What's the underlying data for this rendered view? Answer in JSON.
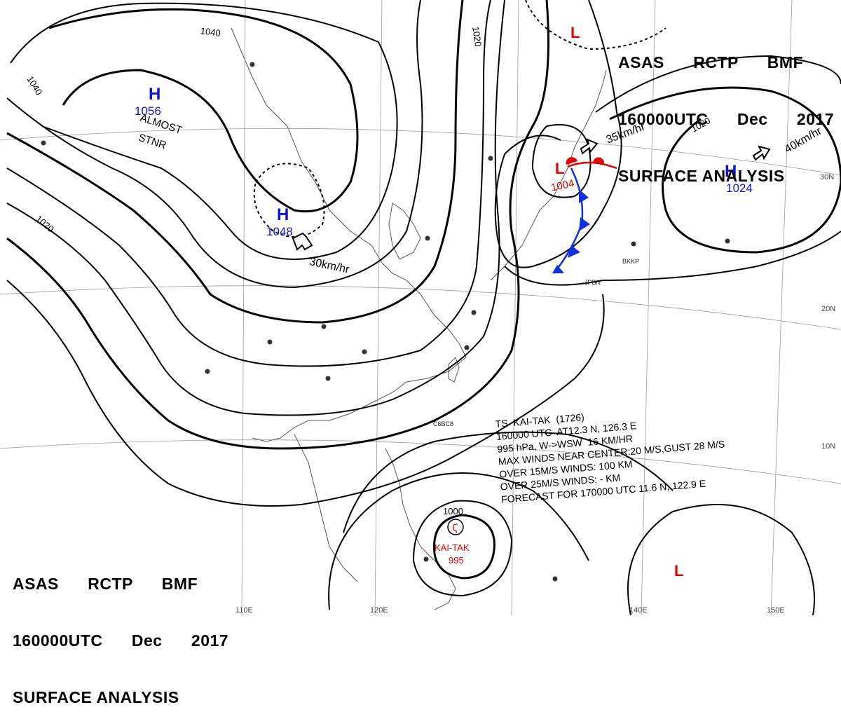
{
  "header": {
    "line1": [
      "ASAS",
      "RCTP",
      "BMF"
    ],
    "line2": [
      "160000UTC",
      "Dec",
      "2017"
    ],
    "line3": "SURFACE ANALYSIS"
  },
  "colors": {
    "isobar": "#000000",
    "high_label": "#1010d0",
    "low_label": "#e00000",
    "cold_front": "#1030e0",
    "warm_front": "#e00000"
  },
  "pressure_centers": [
    {
      "type": "H",
      "value": "1056"
    },
    {
      "type": "H",
      "value": "1048"
    },
    {
      "type": "H",
      "value": "1024"
    },
    {
      "type": "L",
      "value": "1004"
    },
    {
      "type": "L",
      "value": ""
    },
    {
      "type": "L",
      "value": ""
    }
  ],
  "isobar_labels": [
    "1040",
    "1040",
    "1020",
    "1020",
    "1020",
    "1000"
  ],
  "motion_labels": [
    "30km/hr",
    "35km/hr",
    "40km/hr"
  ],
  "stationary_note": [
    "ALMOST",
    "STNR"
  ],
  "latitude_labels": [
    "30N",
    "20N",
    "10N"
  ],
  "longitude_labels": [
    "110E",
    "120E",
    "140E",
    "150E"
  ],
  "typhoon": {
    "name": "KAI-TAK",
    "pressure": "995",
    "symbol": "tropical-storm-icon",
    "info_lines": [
      "TS  KAI-TAK  (1726)",
      "160000 UTC  AT12.3 N, 126.3 E",
      "995 hPa, W->WSW  16 KM/HR",
      "MAX WINDS NEAR CENTER:20 M/S,GUST 28 M/S",
      "OVER 15M/S WINDS: 100 KM",
      "OVER 25M/S WINDS: - KM",
      "FORECAST FOR 170000 UTC 11.6 N, 122.9 E"
    ]
  },
  "station_labels": [
    "JPBN",
    "BKKP",
    "C6BC8"
  ]
}
